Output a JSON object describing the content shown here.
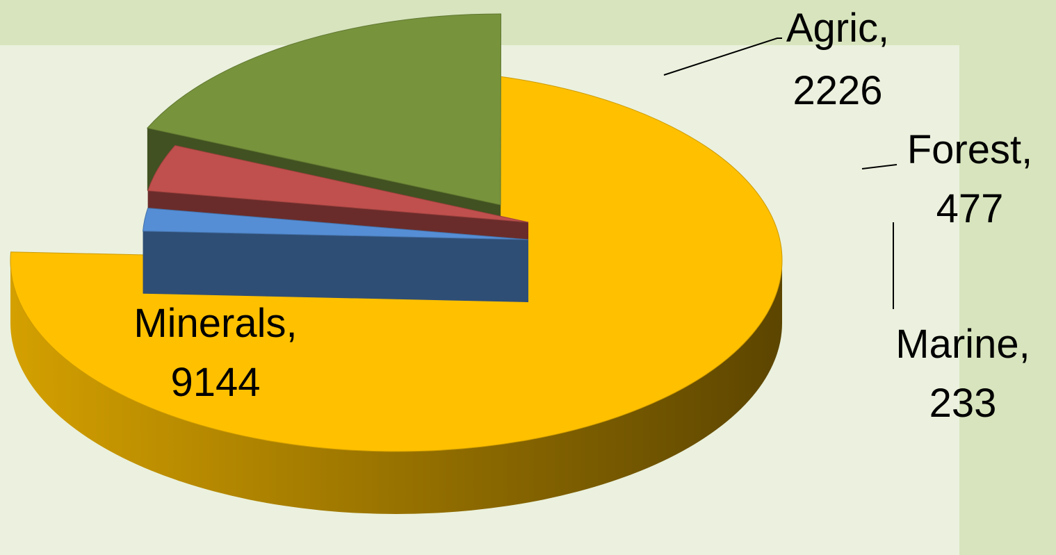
{
  "chart_data": {
    "type": "pie",
    "variant": "3d-exploded",
    "slices": [
      {
        "label": "Minerals",
        "value": 9144,
        "color": "#ffc000",
        "label_line1": "Minerals,",
        "label_line2": "9144"
      },
      {
        "label": "Marine",
        "value": 233,
        "color": "#558ed5",
        "label_line1": "Marine,",
        "label_line2": "233"
      },
      {
        "label": "Forest",
        "value": 477,
        "color": "#c0504d",
        "label_line1": "Forest,",
        "label_line2": "477"
      },
      {
        "label": "Agric",
        "value": 2226,
        "color": "#77933c",
        "label_line1": "Agric,",
        "label_line2": "2226"
      }
    ],
    "title": "",
    "legend": "none",
    "data_labels": "category, value"
  },
  "colors": {
    "outer_background": "#d7e4bd",
    "plot_background": "#ebf1de"
  }
}
